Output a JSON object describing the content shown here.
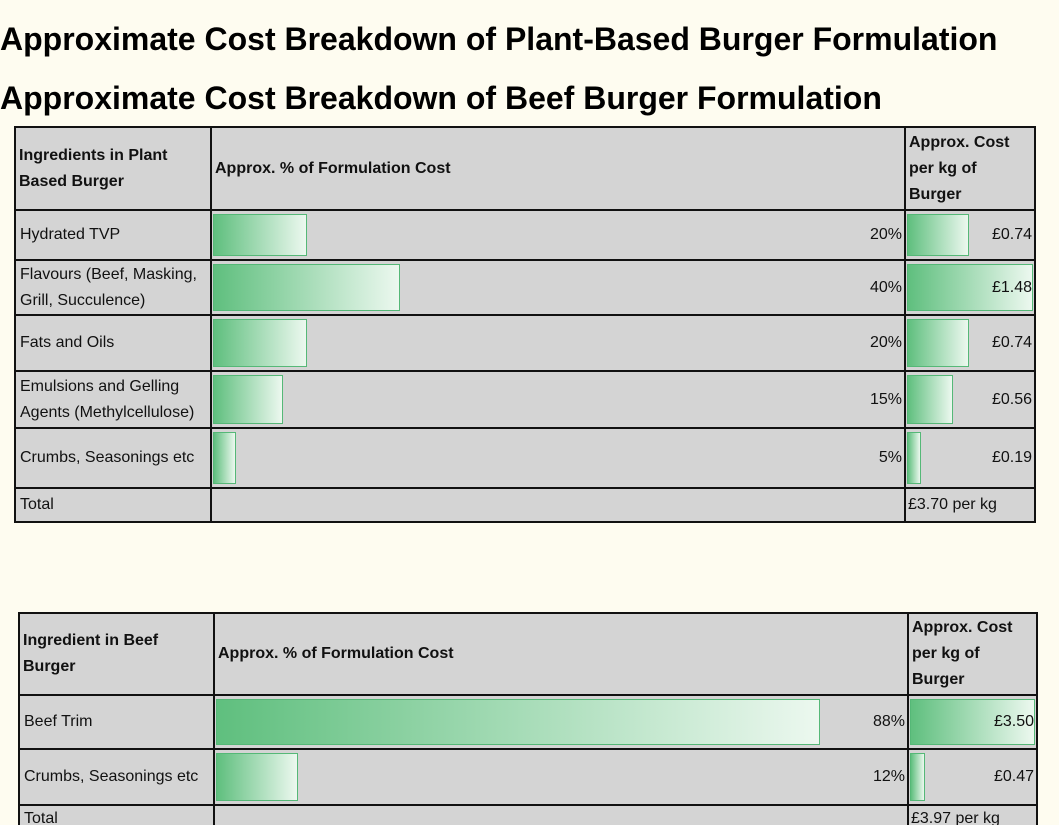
{
  "sections": [
    {
      "title": "Approximate Cost Breakdown of Plant-Based Burger Formulation",
      "table": {
        "headers": [
          "Ingredients in Plant Based Burger",
          "Approx. % of Formulation Cost",
          "Approx. Cost per kg of Burger"
        ],
        "rows": [
          {
            "ingredient": "Hydrated TVP",
            "percent": 20,
            "percent_label": "20%",
            "cost": 0.74,
            "cost_label": "£0.74"
          },
          {
            "ingredient": "Flavours (Beef, Masking, Grill, Succulence)",
            "percent": 40,
            "percent_label": "40%",
            "cost": 1.48,
            "cost_label": "£1.48"
          },
          {
            "ingredient": "Fats and Oils",
            "percent": 20,
            "percent_label": "20%",
            "cost": 0.74,
            "cost_label": "£0.74"
          },
          {
            "ingredient": "Emulsions and Gelling Agents (Methylcellulose)",
            "percent": 15,
            "percent_label": "15%",
            "cost": 0.56,
            "cost_label": "£0.56"
          },
          {
            "ingredient": "Crumbs, Seasonings etc",
            "percent": 5,
            "percent_label": "5%",
            "cost": 0.19,
            "cost_label": "£0.19"
          }
        ],
        "total": {
          "label": "Total",
          "value": "£3.70 per kg"
        }
      }
    },
    {
      "title": "Approximate Cost Breakdown of Beef Burger Formulation",
      "table": {
        "headers": [
          "Ingredient in Beef Burger",
          "Approx. % of Formulation Cost",
          "Approx. Cost per kg of Burger"
        ],
        "rows": [
          {
            "ingredient": "Beef Trim",
            "percent": 88,
            "percent_label": "88%",
            "cost": 3.5,
            "cost_label": "£3.50"
          },
          {
            "ingredient": "Crumbs, Seasonings etc",
            "percent": 12,
            "percent_label": "12%",
            "cost": 0.47,
            "cost_label": "£0.47"
          }
        ],
        "total": {
          "label": "Total",
          "value": "£3.97 per kg"
        }
      }
    }
  ]
}
